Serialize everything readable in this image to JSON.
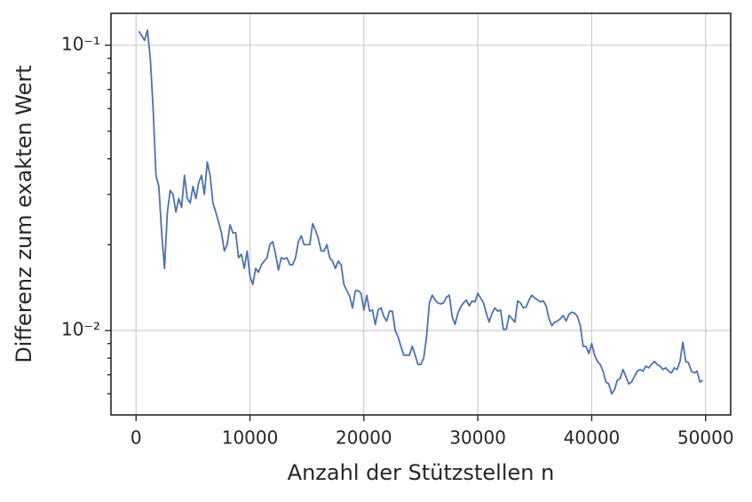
{
  "chart_data": {
    "type": "line",
    "xlabel": "Anzahl der Stützstellen n",
    "ylabel": "Differenz zum exakten Wert",
    "log_y": true,
    "grid": true,
    "xlim": [
      -2200,
      52200
    ],
    "ylim": [
      0.00506,
      0.1294
    ],
    "xticks": [
      0,
      10000,
      20000,
      30000,
      40000,
      50000
    ],
    "yticks": [
      {
        "value": 0.01,
        "label": "10⁻²"
      },
      {
        "value": 0.1,
        "label": "10⁻¹"
      }
    ],
    "yminorticks": [
      0.006,
      0.007,
      0.008,
      0.009,
      0.02,
      0.03,
      0.04,
      0.05,
      0.06,
      0.07,
      0.08,
      0.09
    ],
    "series": [
      {
        "color": "#4c72b0",
        "x": [
          250,
          500,
          750,
          1000,
          1250,
          1500,
          1750,
          2000,
          2250,
          2500,
          2750,
          3000,
          3250,
          3500,
          3750,
          4000,
          4250,
          4500,
          4750,
          5000,
          5250,
          5500,
          5750,
          6000,
          6250,
          6500,
          6750,
          7000,
          7250,
          7500,
          7750,
          8000,
          8250,
          8500,
          8750,
          9000,
          9250,
          9500,
          9750,
          10000,
          10250,
          10500,
          10750,
          11000,
          11250,
          11500,
          11750,
          12000,
          12250,
          12500,
          12750,
          13000,
          13250,
          13500,
          13750,
          14000,
          14250,
          14500,
          14750,
          15000,
          15250,
          15500,
          15750,
          16000,
          16250,
          16500,
          16750,
          17000,
          17250,
          17500,
          17750,
          18000,
          18250,
          18500,
          18750,
          19000,
          19250,
          19500,
          19750,
          20000,
          20250,
          20500,
          20750,
          21000,
          21250,
          21500,
          21750,
          22000,
          22250,
          22500,
          22750,
          23000,
          23250,
          23500,
          23750,
          24000,
          24250,
          24500,
          24750,
          25000,
          25250,
          25500,
          25750,
          26000,
          26250,
          26500,
          26750,
          27000,
          27250,
          27500,
          27750,
          28000,
          28250,
          28500,
          28750,
          29000,
          29250,
          29500,
          29750,
          30000,
          30250,
          30500,
          30750,
          31000,
          31250,
          31500,
          31750,
          32000,
          32250,
          32500,
          32750,
          33000,
          33250,
          33500,
          33750,
          34000,
          34250,
          34500,
          34750,
          35000,
          35250,
          35500,
          35750,
          36000,
          36250,
          36500,
          36750,
          37000,
          37250,
          37500,
          37750,
          38000,
          38250,
          38500,
          38750,
          39000,
          39250,
          39500,
          39750,
          40000,
          40250,
          40500,
          40750,
          41000,
          41250,
          41500,
          41750,
          42000,
          42250,
          42500,
          42750,
          43000,
          43250,
          43500,
          43750,
          44000,
          44250,
          44500,
          44750,
          45000,
          45250,
          45500,
          45750,
          46000,
          46250,
          46500,
          46750,
          47000,
          47250,
          47500,
          47750,
          48000,
          48250,
          48500,
          48750,
          49000,
          49250,
          49500,
          49750
        ],
        "values": [
          0.112,
          0.108,
          0.104,
          0.113,
          0.09,
          0.06,
          0.035,
          0.032,
          0.022,
          0.0165,
          0.026,
          0.031,
          0.03,
          0.026,
          0.029,
          0.027,
          0.035,
          0.029,
          0.028,
          0.032,
          0.029,
          0.033,
          0.035,
          0.03,
          0.039,
          0.035,
          0.028,
          0.026,
          0.024,
          0.022,
          0.019,
          0.02,
          0.0235,
          0.022,
          0.022,
          0.018,
          0.0185,
          0.0165,
          0.019,
          0.0155,
          0.0145,
          0.0165,
          0.016,
          0.017,
          0.0175,
          0.018,
          0.02,
          0.0205,
          0.0185,
          0.0163,
          0.018,
          0.0178,
          0.018,
          0.017,
          0.017,
          0.018,
          0.0205,
          0.0215,
          0.02,
          0.02,
          0.02,
          0.0237,
          0.0225,
          0.021,
          0.019,
          0.019,
          0.02,
          0.018,
          0.0175,
          0.0165,
          0.0175,
          0.017,
          0.0145,
          0.0138,
          0.0132,
          0.012,
          0.0138,
          0.0138,
          0.0135,
          0.0118,
          0.0133,
          0.0117,
          0.0118,
          0.0105,
          0.0118,
          0.012,
          0.0112,
          0.0108,
          0.0117,
          0.0117,
          0.01,
          0.0095,
          0.0088,
          0.0082,
          0.0082,
          0.0082,
          0.0088,
          0.0082,
          0.0076,
          0.0076,
          0.008,
          0.0095,
          0.0125,
          0.0133,
          0.0128,
          0.0125,
          0.0124,
          0.0125,
          0.0131,
          0.0133,
          0.0112,
          0.0105,
          0.0115,
          0.0121,
          0.0125,
          0.0128,
          0.0122,
          0.0127,
          0.0126,
          0.0135,
          0.013,
          0.0125,
          0.0115,
          0.0107,
          0.0115,
          0.012,
          0.0117,
          0.0118,
          0.0101,
          0.0101,
          0.0113,
          0.011,
          0.0107,
          0.0127,
          0.0125,
          0.012,
          0.0121,
          0.0128,
          0.0133,
          0.013,
          0.0128,
          0.0126,
          0.0127,
          0.0122,
          0.011,
          0.0104,
          0.0107,
          0.0108,
          0.011,
          0.0113,
          0.0108,
          0.0114,
          0.0116,
          0.0115,
          0.0112,
          0.0104,
          0.0088,
          0.0088,
          0.0083,
          0.009,
          0.0082,
          0.0078,
          0.0076,
          0.0072,
          0.0066,
          0.0065,
          0.006,
          0.0062,
          0.0067,
          0.0068,
          0.0073,
          0.0069,
          0.0065,
          0.0066,
          0.0069,
          0.0072,
          0.0073,
          0.0072,
          0.0075,
          0.0074,
          0.0076,
          0.0078,
          0.0076,
          0.0075,
          0.0073,
          0.0074,
          0.0072,
          0.0071,
          0.0074,
          0.0073,
          0.0078,
          0.0091,
          0.0078,
          0.0077,
          0.0072,
          0.0071,
          0.0072,
          0.0066,
          0.0067
        ]
      }
    ]
  }
}
